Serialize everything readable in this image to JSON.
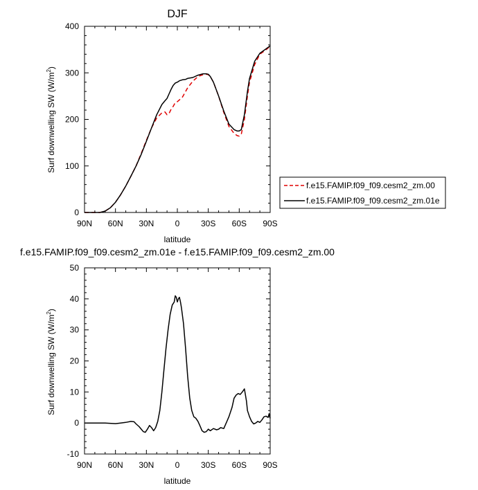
{
  "chart_data": [
    {
      "type": "line",
      "title": "DJF",
      "xlabel": "latitude",
      "ylabel": "Surf downwelling SW (W/m²)",
      "ylabel_main": "Surf downwelling SW (W/m",
      "ylabel_sup": "2",
      "ylabel_close": ")",
      "xlim": [
        -90,
        90
      ],
      "ylim": [
        0,
        400
      ],
      "xtick_values": [
        -90,
        -60,
        -30,
        0,
        30,
        60,
        90
      ],
      "xtick_labels": [
        "90N",
        "60N",
        "30N",
        "0",
        "30S",
        "60S",
        "90S"
      ],
      "ytick_values": [
        0,
        100,
        200,
        300,
        400
      ],
      "ytick_labels": [
        "0",
        "100",
        "200",
        "300",
        "400"
      ],
      "grid": false,
      "legend_position": "right",
      "series": [
        {
          "name": "f.e15.FAMIP.f09_f09.cesm2_zm.00",
          "color": "#e00000",
          "style": "dashed",
          "x": [
            -90,
            -80,
            -75,
            -70,
            -65,
            -60,
            -55,
            -50,
            -45,
            -40,
            -35,
            -30,
            -25,
            -20,
            -15,
            -12,
            -10,
            -8,
            -6,
            -4,
            -2,
            0,
            2,
            5,
            8,
            10,
            15,
            20,
            25,
            28,
            30,
            32,
            35,
            40,
            45,
            50,
            55,
            58,
            60,
            62,
            65,
            68,
            70,
            75,
            80,
            85,
            90
          ],
          "y": [
            0,
            0,
            0,
            3,
            10,
            22,
            38,
            57,
            78,
            100,
            127,
            155,
            182,
            203,
            214,
            216,
            210,
            213,
            222,
            228,
            236,
            238,
            242,
            248,
            260,
            268,
            282,
            292,
            296,
            297,
            296,
            292,
            280,
            250,
            215,
            185,
            170,
            165,
            164,
            168,
            200,
            250,
            280,
            318,
            340,
            348,
            357
          ]
        },
        {
          "name": "f.e15.FAMIP.f09_f09.cesm2_zm.01e",
          "color": "#000000",
          "style": "solid",
          "x": [
            -90,
            -80,
            -75,
            -70,
            -65,
            -60,
            -55,
            -50,
            -45,
            -40,
            -35,
            -30,
            -25,
            -20,
            -15,
            -12,
            -10,
            -8,
            -6,
            -4,
            -2,
            0,
            2,
            5,
            8,
            10,
            15,
            20,
            25,
            28,
            30,
            32,
            35,
            40,
            45,
            50,
            55,
            58,
            60,
            62,
            65,
            68,
            70,
            75,
            80,
            85,
            90
          ],
          "y": [
            0,
            0,
            0,
            3,
            10,
            22,
            38,
            57,
            78,
            100,
            125,
            153,
            182,
            210,
            232,
            240,
            245,
            255,
            265,
            273,
            278,
            280,
            283,
            285,
            286,
            288,
            290,
            295,
            298,
            298,
            297,
            292,
            280,
            250,
            218,
            190,
            178,
            175,
            175,
            178,
            210,
            260,
            288,
            325,
            342,
            350,
            358
          ]
        }
      ]
    },
    {
      "type": "line",
      "title": "f.e15.FAMIP.f09_f09.cesm2_zm.01e - f.e15.FAMIP.f09_f09.cesm2_zm.00",
      "xlabel": "latitude",
      "ylabel": "Surf downwelling SW (W/m²)",
      "ylabel_main": "Surf downwelling SW (W/m",
      "ylabel_sup": "2",
      "ylabel_close": ")",
      "xlim": [
        -90,
        90
      ],
      "ylim": [
        -10,
        50
      ],
      "xtick_values": [
        -90,
        -60,
        -30,
        0,
        30,
        60,
        90
      ],
      "xtick_labels": [
        "90N",
        "60N",
        "30N",
        "0",
        "30S",
        "60S",
        "90S"
      ],
      "ytick_values": [
        -10,
        0,
        10,
        20,
        30,
        40,
        50
      ],
      "ytick_labels": [
        "-10",
        "0",
        "10",
        "20",
        "30",
        "40",
        "50"
      ],
      "grid": false,
      "series": [
        {
          "color": "#000000",
          "style": "solid",
          "x": [
            -90,
            -70,
            -60,
            -55,
            -50,
            -45,
            -42,
            -40,
            -37,
            -35,
            -33,
            -31,
            -29,
            -27,
            -25,
            -23,
            -21,
            -19,
            -17,
            -15,
            -13,
            -11,
            -9,
            -7,
            -5,
            -3,
            -2,
            -1,
            0,
            1,
            2,
            3,
            4,
            6,
            8,
            10,
            12,
            14,
            16,
            18,
            20,
            22,
            24,
            26,
            28,
            30,
            32,
            35,
            38,
            40,
            42,
            45,
            48,
            50,
            53,
            55,
            57,
            59,
            61,
            63,
            65,
            66,
            67,
            68,
            70,
            72,
            74,
            76,
            78,
            80,
            82,
            84,
            86,
            88,
            89,
            90
          ],
          "y": [
            0,
            0,
            -0.2,
            0,
            0.2,
            0.5,
            0.4,
            -0.3,
            -1.2,
            -2,
            -2.8,
            -3,
            -2,
            -0.8,
            -1.5,
            -2.5,
            -1.5,
            0.5,
            4,
            10,
            17,
            24,
            30,
            35,
            38,
            39,
            41,
            40.5,
            39,
            40,
            40.5,
            39,
            37,
            32,
            24,
            15,
            8,
            4,
            2,
            1.5,
            0.5,
            -1,
            -2.5,
            -3,
            -2.8,
            -2,
            -2.5,
            -1.8,
            -2.2,
            -2,
            -1.5,
            -1.8,
            0.5,
            2,
            5,
            8,
            9,
            9.5,
            9.2,
            10,
            11,
            9,
            7,
            4,
            2,
            0.5,
            -0.3,
            0,
            0.5,
            0.2,
            1,
            2,
            2.2,
            1.8,
            3,
            1.5
          ]
        }
      ]
    }
  ]
}
